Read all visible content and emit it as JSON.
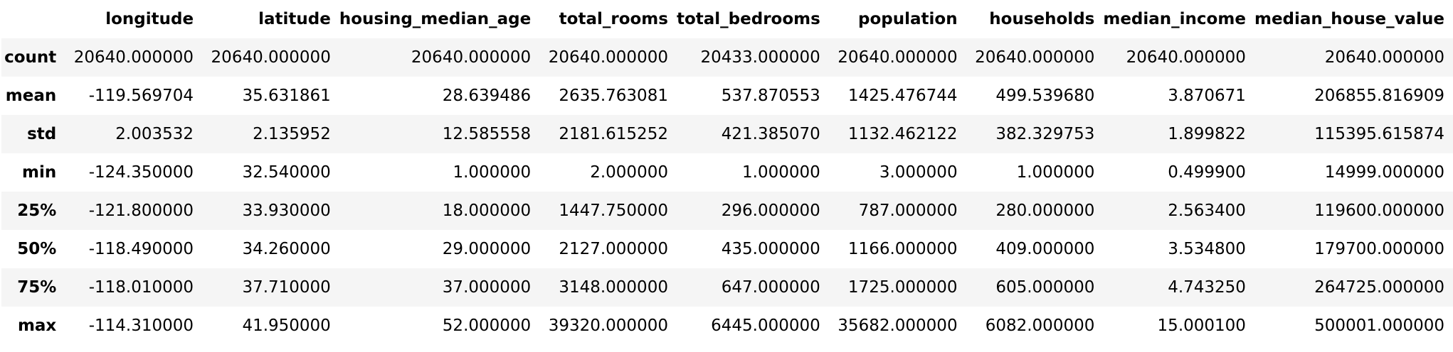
{
  "table": {
    "columns": [
      "",
      "longitude",
      "latitude",
      "housing_median_age",
      "total_rooms",
      "total_bedrooms",
      "population",
      "households",
      "median_income",
      "median_house_value"
    ],
    "rows": [
      {
        "index": "count",
        "values": [
          "20640.000000",
          "20640.000000",
          "20640.000000",
          "20640.000000",
          "20433.000000",
          "20640.000000",
          "20640.000000",
          "20640.000000",
          "20640.000000"
        ]
      },
      {
        "index": "mean",
        "values": [
          "-119.569704",
          "35.631861",
          "28.639486",
          "2635.763081",
          "537.870553",
          "1425.476744",
          "499.539680",
          "3.870671",
          "206855.816909"
        ]
      },
      {
        "index": "std",
        "values": [
          "2.003532",
          "2.135952",
          "12.585558",
          "2181.615252",
          "421.385070",
          "1132.462122",
          "382.329753",
          "1.899822",
          "115395.615874"
        ]
      },
      {
        "index": "min",
        "values": [
          "-124.350000",
          "32.540000",
          "1.000000",
          "2.000000",
          "1.000000",
          "3.000000",
          "1.000000",
          "0.499900",
          "14999.000000"
        ]
      },
      {
        "index": "25%",
        "values": [
          "-121.800000",
          "33.930000",
          "18.000000",
          "1447.750000",
          "296.000000",
          "787.000000",
          "280.000000",
          "2.563400",
          "119600.000000"
        ]
      },
      {
        "index": "50%",
        "values": [
          "-118.490000",
          "34.260000",
          "29.000000",
          "2127.000000",
          "435.000000",
          "1166.000000",
          "409.000000",
          "3.534800",
          "179700.000000"
        ]
      },
      {
        "index": "75%",
        "values": [
          "-118.010000",
          "37.710000",
          "37.000000",
          "3148.000000",
          "647.000000",
          "1725.000000",
          "605.000000",
          "4.743250",
          "264725.000000"
        ]
      },
      {
        "index": "max",
        "values": [
          "-114.310000",
          "41.950000",
          "52.000000",
          "39320.000000",
          "6445.000000",
          "35682.000000",
          "6082.000000",
          "15.000100",
          "500001.000000"
        ]
      }
    ]
  },
  "colors": {
    "odd_row_background": "#f5f5f5",
    "even_row_background": "#ffffff",
    "text": "#000000"
  }
}
